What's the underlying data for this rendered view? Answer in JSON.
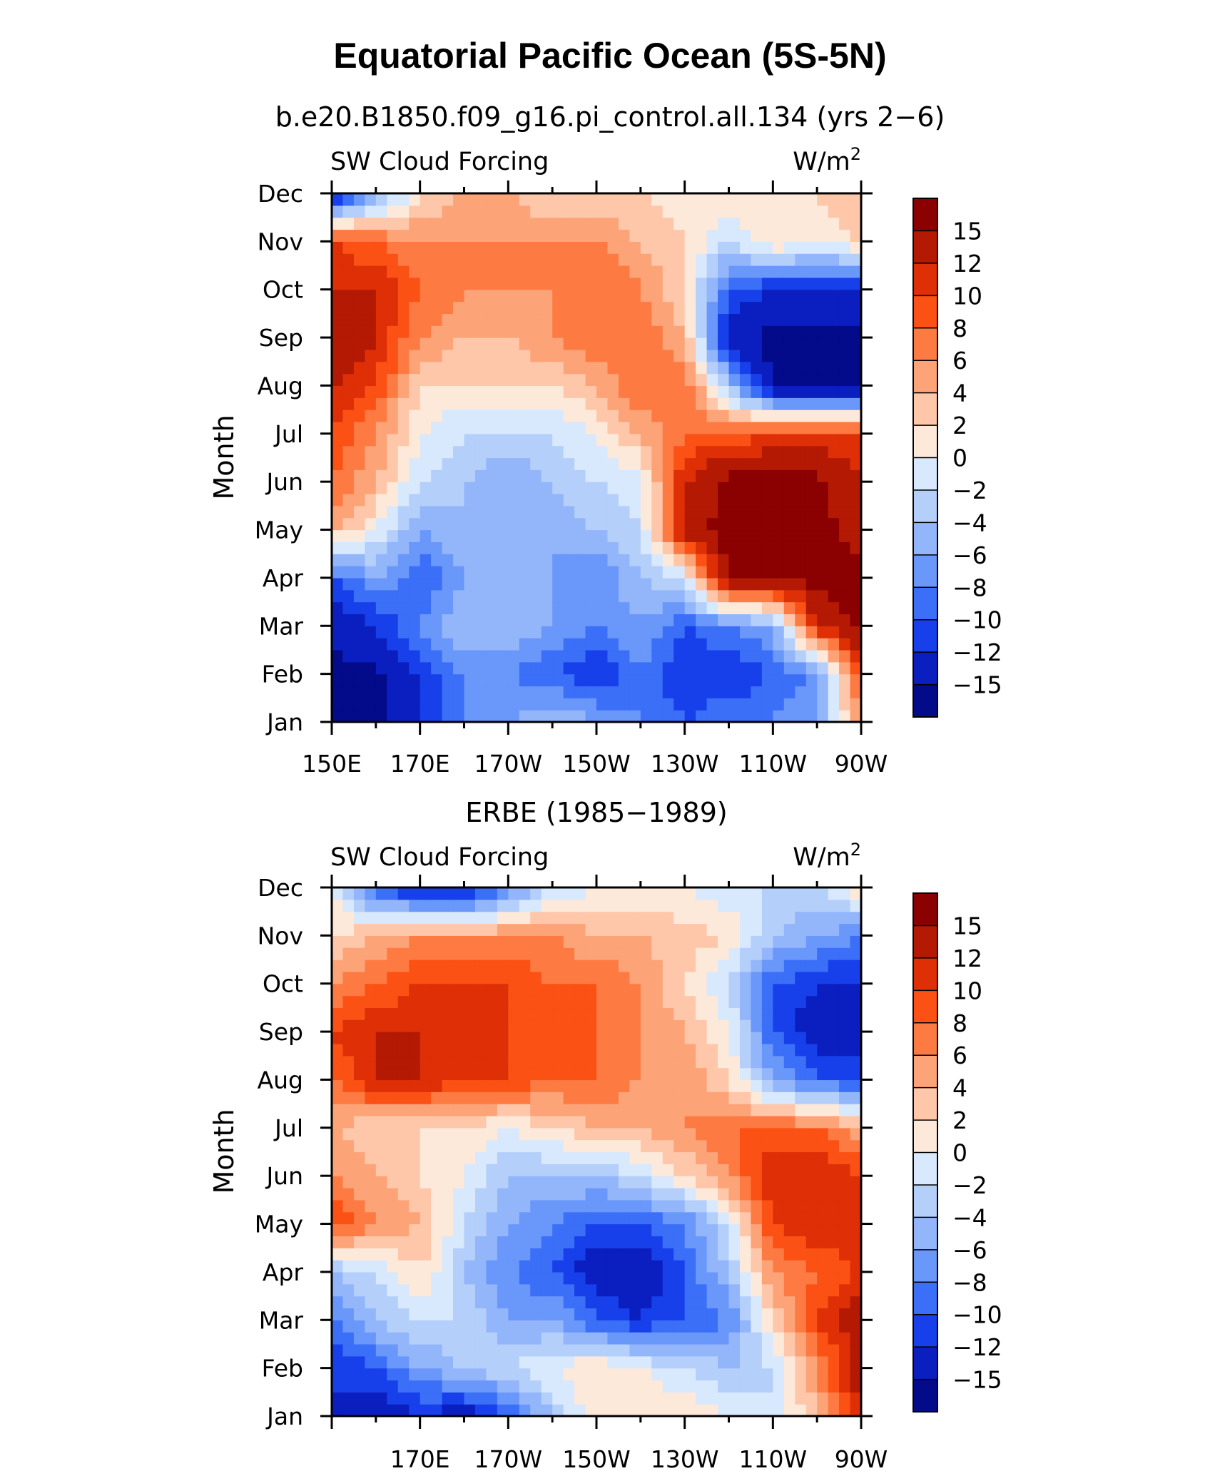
{
  "title": "Equatorial Pacific Ocean (5S-5N)",
  "units_sup": "2",
  "colorbar": {
    "labels": [
      "15",
      "12",
      "10",
      "8",
      "6",
      "4",
      "2",
      "0",
      "−2",
      "−4",
      "−6",
      "−8",
      "−10",
      "−12",
      "−15"
    ],
    "colors": [
      "#8b0000",
      "#b41904",
      "#de2f07",
      "#fb5114",
      "#fd7b43",
      "#fda378",
      "#fec7aa",
      "#fde9da",
      "#d8e8fd",
      "#b5cffb",
      "#93b6fb",
      "#6a97fa",
      "#3b6ff8",
      "#1740ea",
      "#0b1fc1",
      "#030b8a"
    ]
  },
  "chart_data": [
    {
      "type": "heatmap",
      "subtitle": "b.e20.B1850.f09_g16.pi_control.all.134 (yrs 2−6)",
      "left_label": "SW Cloud Forcing",
      "right_label": "W/m",
      "ylabel": "Month",
      "yticks": [
        "Dec",
        "Nov",
        "Oct",
        "Sep",
        "Aug",
        "Jul",
        "Jun",
        "May",
        "Apr",
        "Mar",
        "Feb",
        "Jan"
      ],
      "xticks": [
        "150E",
        "170E",
        "170W",
        "150W",
        "130W",
        "110W",
        "90W"
      ],
      "longitudes": [
        150,
        160,
        170,
        180,
        190,
        200,
        210,
        220,
        230,
        240,
        250,
        260,
        270
      ],
      "months": [
        "Jan",
        "Feb",
        "Mar",
        "Apr",
        "May",
        "Jun",
        "Jul",
        "Aug",
        "Sep",
        "Oct",
        "Nov",
        "Dec"
      ],
      "values": [
        [
          -16,
          -16,
          -12,
          -8,
          -6,
          -4,
          -6,
          -8,
          -10,
          -8,
          -8,
          -6,
          6
        ],
        [
          -16,
          -16,
          -12,
          -8,
          -8,
          -10,
          -12,
          -8,
          -12,
          -12,
          -10,
          -8,
          10
        ],
        [
          -14,
          -12,
          -8,
          -4,
          -4,
          -6,
          -8,
          -6,
          -10,
          -8,
          -6,
          12,
          16
        ],
        [
          -10,
          -6,
          -10,
          -6,
          -4,
          -6,
          -8,
          -4,
          -2,
          16,
          16,
          16,
          16
        ],
        [
          4,
          0,
          -6,
          -4,
          -6,
          -6,
          -4,
          -2,
          14,
          16,
          16,
          16,
          14
        ],
        [
          8,
          4,
          -2,
          -4,
          -6,
          -4,
          -2,
          -1,
          12,
          16,
          16,
          16,
          12
        ],
        [
          10,
          6,
          0,
          -2,
          -2,
          -2,
          0,
          4,
          8,
          8,
          10,
          10,
          10
        ],
        [
          12,
          10,
          2,
          2,
          2,
          2,
          4,
          8,
          8,
          -4,
          -16,
          -16,
          -16
        ],
        [
          14,
          12,
          6,
          4,
          4,
          6,
          8,
          8,
          4,
          -14,
          -16,
          -16,
          -16
        ],
        [
          12,
          12,
          8,
          6,
          6,
          6,
          8,
          6,
          2,
          -10,
          -12,
          -12,
          -12
        ],
        [
          10,
          8,
          6,
          6,
          6,
          6,
          6,
          4,
          2,
          -2,
          2,
          0,
          2
        ],
        [
          -14,
          -6,
          2,
          4,
          4,
          2,
          2,
          2,
          0,
          2,
          2,
          2,
          4
        ]
      ],
      "clevels": [
        -15,
        -12,
        -10,
        -8,
        -6,
        -4,
        -2,
        0,
        2,
        4,
        6,
        8,
        10,
        12,
        15
      ]
    },
    {
      "type": "heatmap",
      "subtitle": "ERBE (1985−1989)",
      "left_label": "SW Cloud Forcing",
      "right_label": "W/m",
      "ylabel": "Month",
      "yticks": [
        "Dec",
        "Nov",
        "Oct",
        "Sep",
        "Aug",
        "Jul",
        "Jun",
        "May",
        "Apr",
        "Mar",
        "Feb",
        "Jan"
      ],
      "xticks": [
        "170E",
        "170W",
        "150W",
        "130W",
        "110W",
        "90W"
      ],
      "longitudes": [
        150,
        160,
        170,
        180,
        190,
        200,
        210,
        220,
        230,
        240,
        250,
        260,
        270
      ],
      "months": [
        "Jan",
        "Feb",
        "Mar",
        "Apr",
        "May",
        "Jun",
        "Jul",
        "Aug",
        "Sep",
        "Oct",
        "Nov",
        "Dec"
      ],
      "values": [
        [
          -12,
          -14,
          -12,
          -14,
          -10,
          -4,
          2,
          2,
          2,
          0,
          -2,
          4,
          12
        ],
        [
          -12,
          -10,
          -6,
          -4,
          -2,
          0,
          2,
          0,
          -2,
          -4,
          -2,
          6,
          14
        ],
        [
          -8,
          -4,
          -2,
          -2,
          -6,
          -6,
          -10,
          -12,
          -10,
          -8,
          2,
          10,
          14
        ],
        [
          -4,
          -2,
          2,
          -4,
          -8,
          -10,
          -14,
          -14,
          -10,
          -4,
          6,
          8,
          10
        ],
        [
          10,
          6,
          4,
          -2,
          -6,
          -8,
          -10,
          -10,
          -8,
          -2,
          10,
          12,
          12
        ],
        [
          6,
          4,
          2,
          0,
          -4,
          -4,
          -4,
          -2,
          2,
          6,
          12,
          12,
          10
        ],
        [
          4,
          2,
          2,
          2,
          0,
          2,
          4,
          4,
          6,
          8,
          8,
          8,
          4
        ],
        [
          8,
          12,
          12,
          10,
          10,
          8,
          8,
          6,
          6,
          2,
          -6,
          -10,
          -10
        ],
        [
          10,
          12,
          12,
          12,
          10,
          8,
          8,
          6,
          4,
          0,
          -10,
          -14,
          -14
        ],
        [
          6,
          8,
          10,
          10,
          10,
          8,
          8,
          6,
          2,
          -2,
          -10,
          -12,
          -12
        ],
        [
          2,
          4,
          6,
          6,
          6,
          6,
          4,
          4,
          3,
          2,
          -4,
          -6,
          -8
        ],
        [
          0,
          -10,
          -14,
          -14,
          -8,
          -2,
          0,
          0,
          0,
          -2,
          -2,
          -2,
          2
        ]
      ],
      "clevels": [
        -15,
        -12,
        -10,
        -8,
        -6,
        -4,
        -2,
        0,
        2,
        4,
        6,
        8,
        10,
        12,
        15
      ]
    }
  ]
}
